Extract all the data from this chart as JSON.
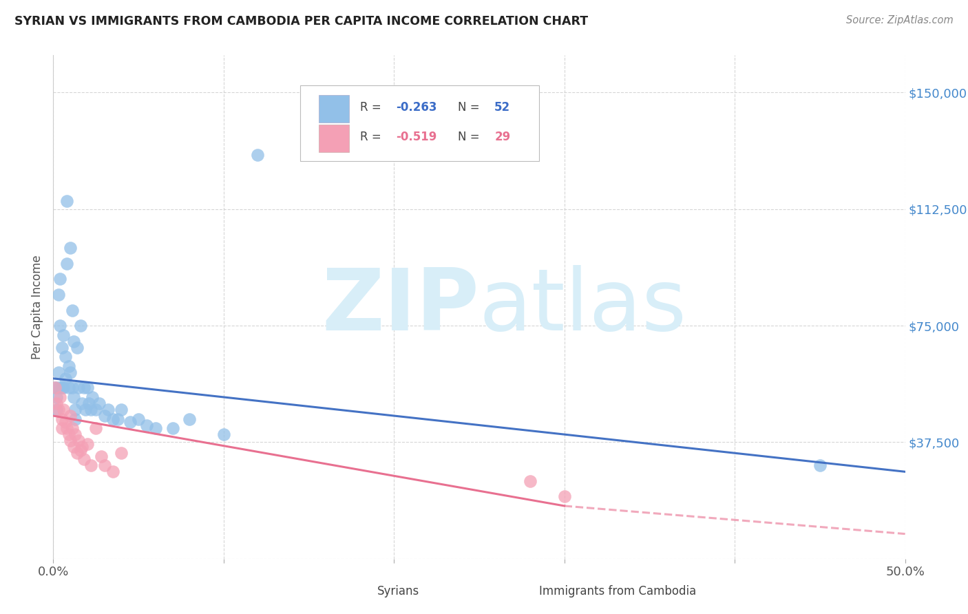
{
  "title": "SYRIAN VS IMMIGRANTS FROM CAMBODIA PER CAPITA INCOME CORRELATION CHART",
  "source": "Source: ZipAtlas.com",
  "ylabel": "Per Capita Income",
  "yticks": [
    0,
    37500,
    75000,
    112500,
    150000
  ],
  "ylim": [
    0,
    162000
  ],
  "xlim": [
    0,
    0.5
  ],
  "color_syrian": "#92C0E8",
  "color_cambodia": "#F4A0B5",
  "color_trendline_syrian": "#4472C4",
  "color_trendline_cambodia": "#E87090",
  "watermark_zip": "ZIP",
  "watermark_atlas": "atlas",
  "watermark_color": "#D8EEF8",
  "syrians_x": [
    0.001,
    0.002,
    0.002,
    0.003,
    0.003,
    0.003,
    0.004,
    0.004,
    0.005,
    0.005,
    0.006,
    0.006,
    0.007,
    0.007,
    0.008,
    0.008,
    0.009,
    0.009,
    0.01,
    0.01,
    0.011,
    0.011,
    0.012,
    0.012,
    0.013,
    0.013,
    0.014,
    0.015,
    0.016,
    0.017,
    0.018,
    0.019,
    0.02,
    0.021,
    0.022,
    0.023,
    0.025,
    0.027,
    0.03,
    0.032,
    0.035,
    0.038,
    0.04,
    0.045,
    0.05,
    0.055,
    0.06,
    0.07,
    0.08,
    0.1,
    0.12,
    0.45
  ],
  "syrians_y": [
    55000,
    48000,
    52000,
    85000,
    60000,
    55000,
    90000,
    75000,
    68000,
    55000,
    72000,
    55000,
    65000,
    58000,
    115000,
    95000,
    62000,
    55000,
    100000,
    60000,
    80000,
    55000,
    70000,
    52000,
    48000,
    45000,
    68000,
    55000,
    75000,
    50000,
    55000,
    48000,
    55000,
    50000,
    48000,
    52000,
    48000,
    50000,
    46000,
    48000,
    45000,
    45000,
    48000,
    44000,
    45000,
    43000,
    42000,
    42000,
    45000,
    40000,
    130000,
    30000
  ],
  "cambodia_x": [
    0.001,
    0.002,
    0.003,
    0.004,
    0.005,
    0.005,
    0.006,
    0.007,
    0.008,
    0.009,
    0.01,
    0.01,
    0.011,
    0.012,
    0.013,
    0.014,
    0.015,
    0.016,
    0.017,
    0.018,
    0.02,
    0.022,
    0.025,
    0.028,
    0.03,
    0.035,
    0.04,
    0.28,
    0.3
  ],
  "cambodia_y": [
    55000,
    50000,
    48000,
    52000,
    45000,
    42000,
    48000,
    44000,
    42000,
    40000,
    46000,
    38000,
    42000,
    36000,
    40000,
    34000,
    38000,
    35000,
    36000,
    32000,
    37000,
    30000,
    42000,
    33000,
    30000,
    28000,
    34000,
    25000,
    20000
  ],
  "trend_syrian_x0": 0.0,
  "trend_syrian_x1": 0.5,
  "trend_syrian_y0": 58000,
  "trend_syrian_y1": 28000,
  "trend_cambodia_x0": 0.0,
  "trend_cambodia_x1": 0.3,
  "trend_cambodia_y0": 46000,
  "trend_cambodia_y1": 17000,
  "trend_cambodia_dash_x0": 0.3,
  "trend_cambodia_dash_x1": 0.5,
  "trend_cambodia_dash_y0": 17000,
  "trend_cambodia_dash_y1": 8000
}
